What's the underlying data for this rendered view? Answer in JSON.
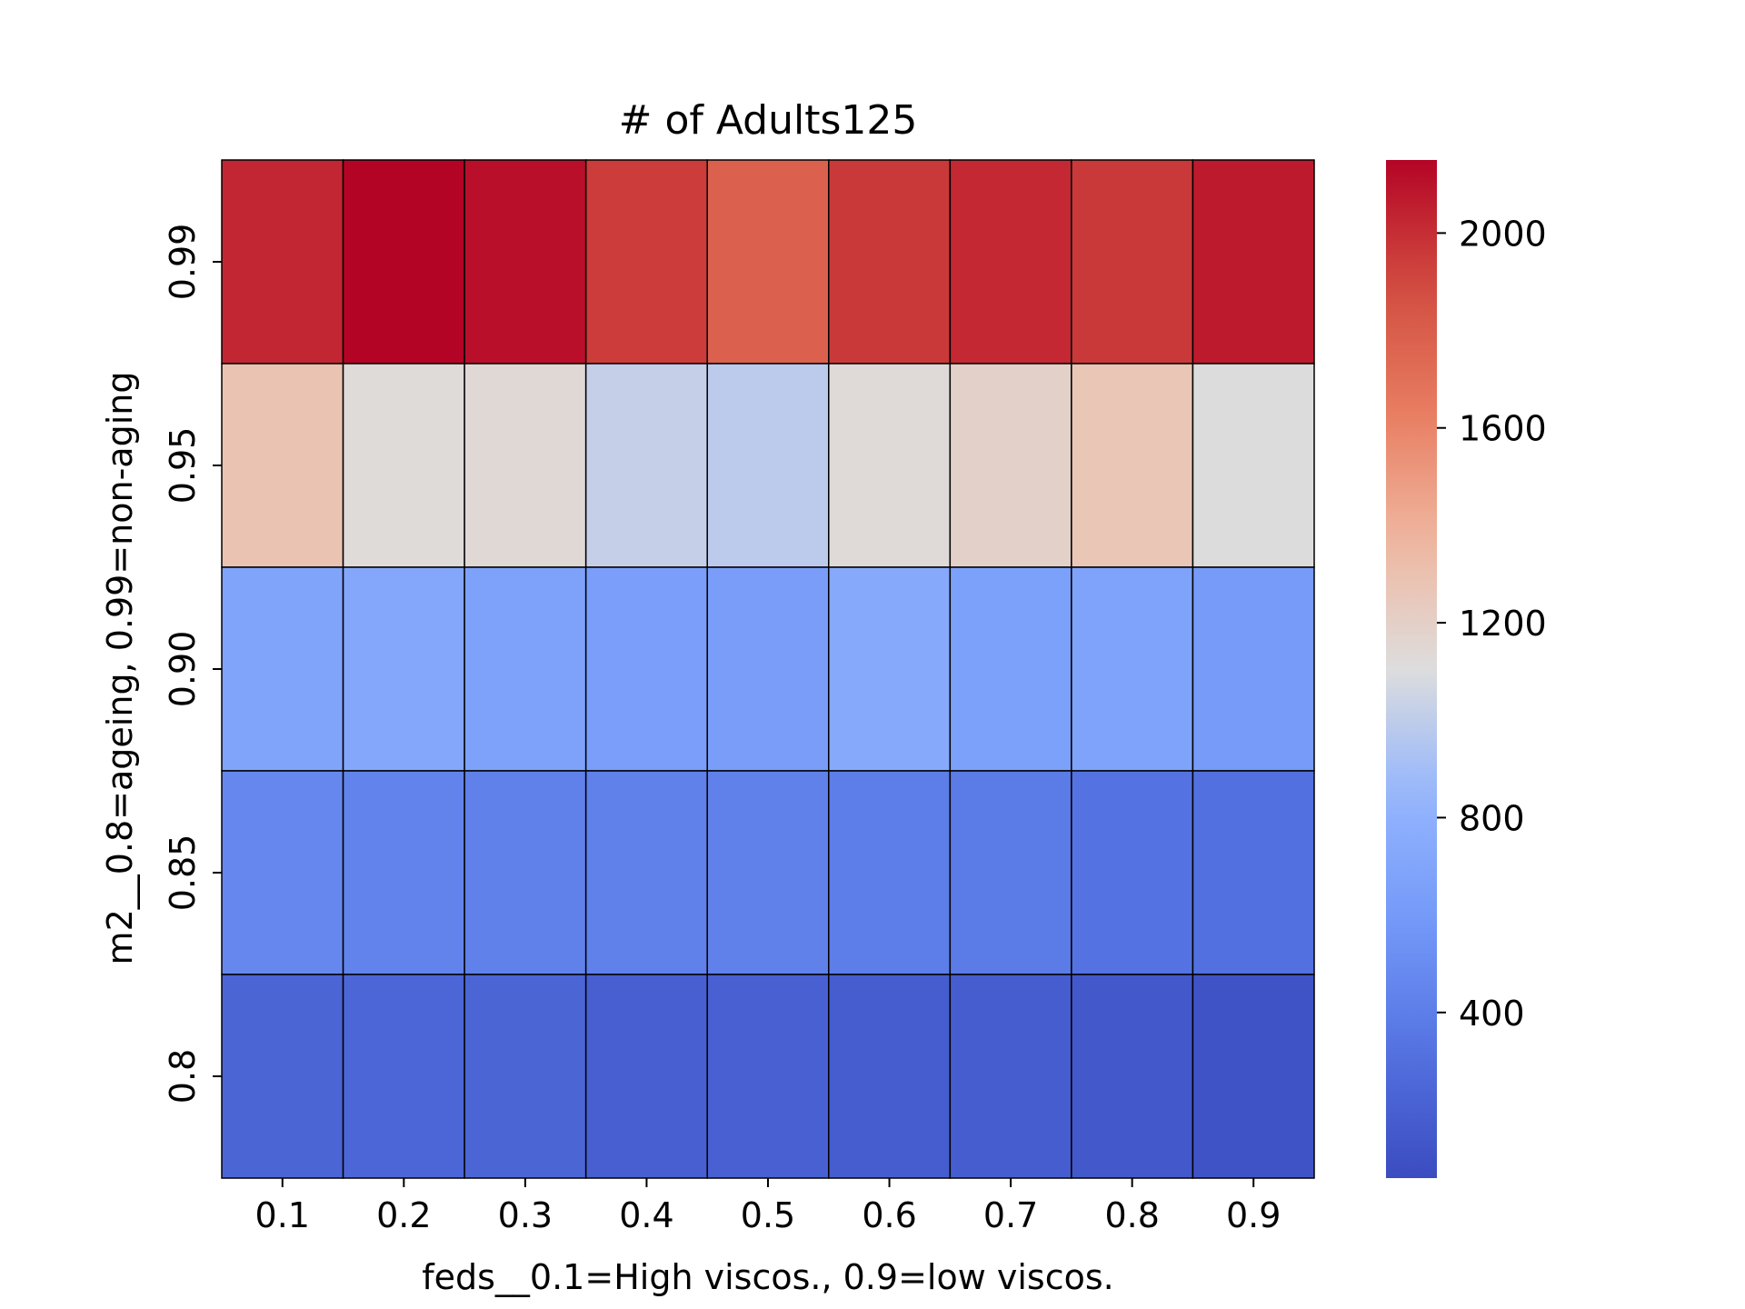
{
  "chart_data": {
    "type": "heatmap",
    "title": "# of Adults125",
    "xlabel": "feds__0.1=High viscos., 0.9=low viscos.",
    "ylabel": "m2__0.8=ageing, 0.99=non-aging",
    "x_categories": [
      "0.1",
      "0.2",
      "0.3",
      "0.4",
      "0.5",
      "0.6",
      "0.7",
      "0.8",
      "0.9"
    ],
    "y_categories": [
      "0.99",
      "0.95",
      "0.90",
      "0.85",
      "0.8"
    ],
    "values": [
      [
        2030,
        2150,
        2110,
        1950,
        1780,
        1960,
        2020,
        1960,
        2070
      ],
      [
        1290,
        1120,
        1140,
        1020,
        990,
        1130,
        1190,
        1270,
        1110
      ],
      [
        690,
        720,
        670,
        640,
        630,
        740,
        660,
        680,
        610
      ],
      [
        470,
        440,
        420,
        420,
        420,
        400,
        380,
        320,
        310
      ],
      [
        230,
        240,
        230,
        190,
        200,
        180,
        180,
        140,
        110
      ]
    ],
    "colorbar": {
      "colormap": "coolwarm",
      "range": [
        60,
        2150
      ],
      "ticks": [
        400,
        800,
        1200,
        1600,
        2000
      ]
    },
    "grid": false,
    "cell_borders": true
  }
}
